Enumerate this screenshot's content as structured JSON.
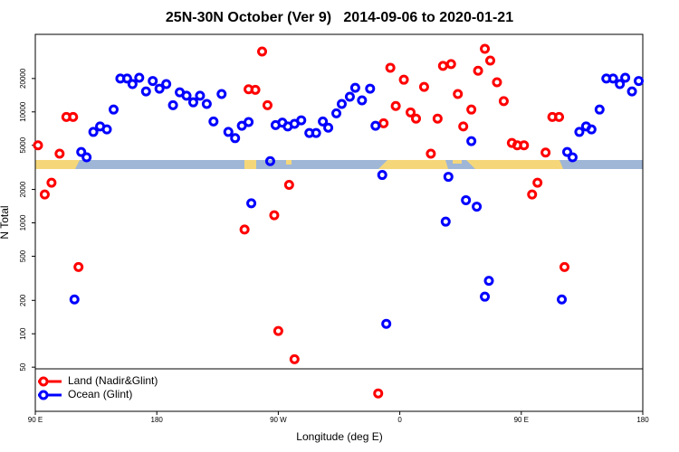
{
  "chart_data": {
    "type": "scatter",
    "title": "25N-30N October (Ver 9)   2014-09-06 to 2020-01-21",
    "xlabel": "Longitude (deg E)",
    "ylabel": "N Total",
    "xlim": [
      90,
      540
    ],
    "xticks": [
      {
        "value": 90,
        "label": "90 E"
      },
      180,
      {
        "value": 270,
        "label": "90 W"
      },
      {
        "value": 360,
        "label": "0"
      },
      {
        "value": 450,
        "label": "90 E"
      },
      {
        "value": 540,
        "label": "180"
      }
    ],
    "ylim": [
      20,
      50000
    ],
    "yticks": [
      50,
      100,
      200,
      500,
      1000,
      2000,
      5000,
      10000,
      20000
    ],
    "log_y": true,
    "grid": false,
    "legend": "bottom-left",
    "series": [
      {
        "name": "Land (Nadir&Glint)",
        "color": "#ff0000",
        "x": [
          92,
          97,
          102,
          108,
          113,
          118,
          122,
          245,
          248,
          253,
          258,
          262,
          267,
          270,
          278,
          282,
          344,
          348,
          353,
          357,
          363,
          368,
          372,
          378,
          383,
          388,
          392,
          398,
          403,
          407,
          413,
          418,
          423,
          427,
          432,
          437,
          443,
          447,
          452,
          458,
          462,
          468,
          473,
          478,
          482
        ],
        "values": [
          5000,
          1800,
          2300,
          4200,
          9000,
          9000,
          400,
          870,
          16000,
          15800,
          35000,
          11500,
          1170,
          106,
          2200,
          59,
          29,
          7900,
          25000,
          11300,
          19500,
          9900,
          8700,
          16800,
          4200,
          8700,
          26000,
          27000,
          14500,
          7400,
          10500,
          23500,
          37000,
          29000,
          18500,
          12500,
          5250,
          5000,
          5000,
          1800,
          2300,
          4300,
          9000,
          9000,
          400
        ]
      },
      {
        "name": "Ocean (Glint)",
        "color": "#0000ff",
        "x": [
          119,
          124,
          128,
          133,
          138,
          143,
          148,
          153,
          158,
          162,
          167,
          172,
          177,
          182,
          187,
          192,
          197,
          202,
          207,
          212,
          217,
          222,
          228,
          233,
          238,
          243,
          248,
          250,
          264,
          268,
          273,
          277,
          282,
          287,
          293,
          298,
          303,
          307,
          313,
          317,
          323,
          327,
          332,
          338,
          342,
          347,
          350,
          394,
          396,
          409,
          413,
          417,
          423,
          426,
          480,
          484,
          488,
          493,
          498,
          502,
          508,
          513,
          518,
          523,
          527,
          532,
          537
        ],
        "values": [
          204,
          4350,
          3900,
          6600,
          7400,
          6950,
          10500,
          20000,
          20000,
          17800,
          20300,
          15300,
          19000,
          16200,
          17800,
          11500,
          15000,
          14000,
          12200,
          14000,
          11800,
          8200,
          14500,
          6600,
          5800,
          7500,
          8100,
          1500,
          3600,
          7600,
          8000,
          7400,
          7800,
          8400,
          6450,
          6450,
          8200,
          7200,
          9700,
          11800,
          13700,
          16500,
          12700,
          16200,
          7500,
          2700,
          123,
          1025,
          2600,
          1600,
          5450,
          1400,
          216,
          300,
          204,
          4350,
          3900,
          6600,
          7400,
          6950,
          10500,
          20000,
          20000,
          17800,
          20300,
          15300,
          19000
        ]
      }
    ]
  }
}
